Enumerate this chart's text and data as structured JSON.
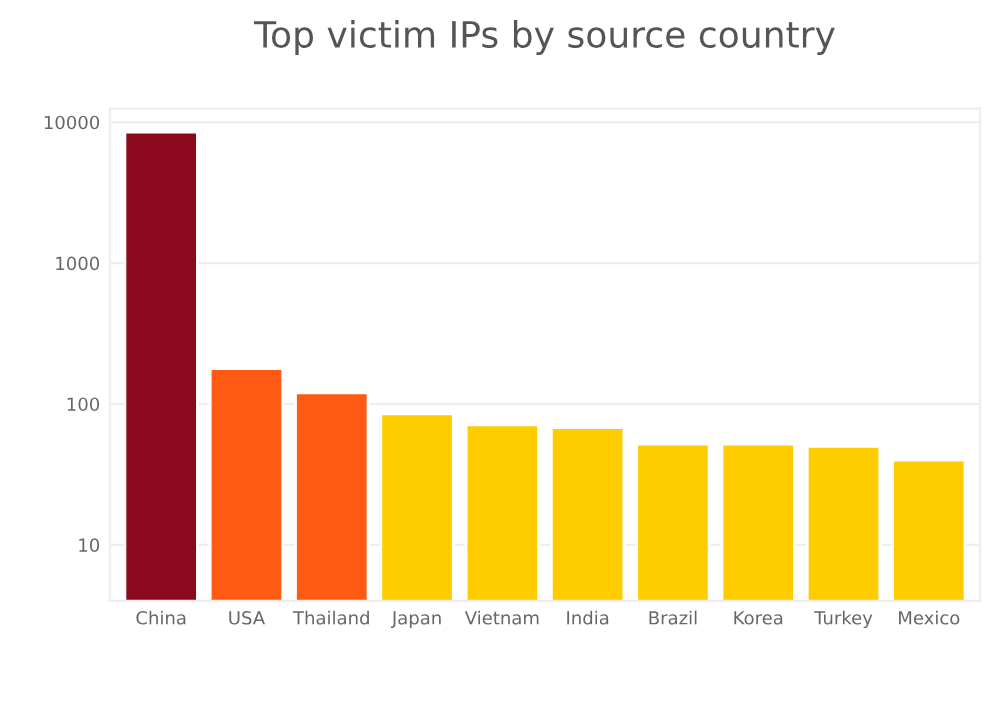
{
  "chart_data": {
    "type": "bar",
    "title": "Top victim IPs by source country",
    "categories": [
      "China",
      "USA",
      "Thailand",
      "Japan",
      "Vietnam",
      "India",
      "Brazil",
      "Korea",
      "Turkey",
      "Mexico"
    ],
    "values": [
      8500,
      178,
      120,
      85,
      71,
      68,
      52,
      52,
      50,
      40
    ],
    "colors": [
      "#8b0a1e",
      "#ff5a14",
      "#ff5a14",
      "#ffcc00",
      "#ffcc00",
      "#ffcc00",
      "#ffcc00",
      "#ffcc00",
      "#ffcc00",
      "#ffcc00"
    ],
    "log": true,
    "ylim": [
      4,
      12500
    ],
    "yticks": [
      10,
      100,
      1000,
      10000
    ],
    "grid": "y"
  }
}
